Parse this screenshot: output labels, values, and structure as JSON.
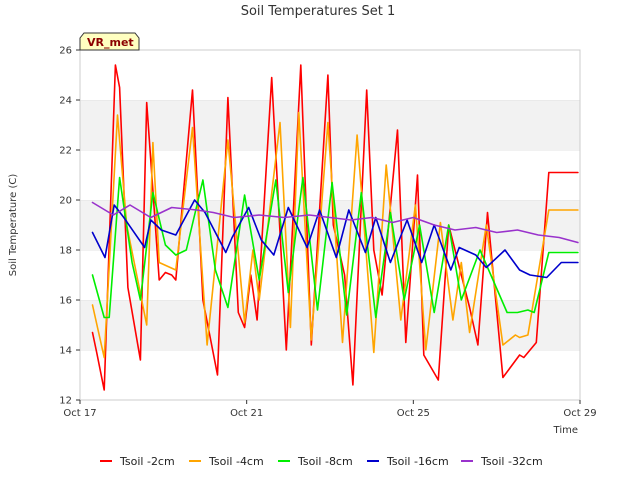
{
  "chart_data": {
    "type": "line",
    "title": "Soil Temperatures Set 1",
    "xlabel": "Time",
    "ylabel": "Soil Temperature (C)",
    "badge": "VR_met",
    "xlim": [
      0,
      12
    ],
    "ylim": [
      12,
      26
    ],
    "x_ticks": [
      {
        "value": 0,
        "label": "Oct 17"
      },
      {
        "value": 4,
        "label": "Oct 21"
      },
      {
        "value": 8,
        "label": "Oct 25"
      },
      {
        "value": 12,
        "label": "Oct 29"
      }
    ],
    "y_ticks": [
      12,
      14,
      16,
      18,
      20,
      22,
      24,
      26
    ],
    "grid": "alternating horizontal bands",
    "legend": "bottom",
    "series": [
      {
        "name": "Tsoil -2cm",
        "color": "#ff0000",
        "x": [
          0.3,
          0.4,
          0.58,
          0.85,
          0.95,
          1.15,
          1.45,
          1.6,
          1.9,
          2.05,
          2.2,
          2.3,
          2.7,
          2.95,
          3.3,
          3.55,
          3.8,
          3.95,
          4.1,
          4.25,
          4.6,
          4.95,
          5.3,
          5.55,
          5.95,
          6.08,
          6.35,
          6.55,
          6.88,
          7.05,
          7.25,
          7.62,
          7.82,
          8.1,
          8.25,
          8.6,
          8.85,
          9.15,
          9.35,
          9.55,
          9.78,
          10.15,
          10.55,
          10.65,
          10.95,
          11.25,
          11.55,
          11.8,
          11.95
        ],
        "values": [
          14.7,
          13.9,
          12.4,
          25.4,
          24.5,
          16.5,
          13.6,
          23.9,
          16.8,
          17.1,
          17.0,
          16.8,
          24.4,
          16.0,
          13.0,
          24.1,
          15.5,
          14.9,
          17.0,
          15.2,
          24.9,
          14.0,
          25.4,
          14.2,
          25.0,
          19.0,
          17.0,
          12.6,
          24.4,
          18.0,
          16.2,
          22.8,
          14.3,
          21.0,
          13.8,
          12.8,
          19.0,
          17.0,
          15.7,
          14.2,
          19.5,
          12.9,
          13.8,
          13.7,
          14.3,
          21.1,
          21.1,
          21.1,
          21.1
        ]
      },
      {
        "name": "Tsoil -4cm",
        "color": "#ffa500",
        "x": [
          0.3,
          0.58,
          0.9,
          1.12,
          1.6,
          1.75,
          1.9,
          2.3,
          2.7,
          3.05,
          3.55,
          3.95,
          4.15,
          4.3,
          4.8,
          5.05,
          5.25,
          5.55,
          5.95,
          6.3,
          6.65,
          7.05,
          7.35,
          7.7,
          8.05,
          8.3,
          8.65,
          8.95,
          9.15,
          9.35,
          9.75,
          10.15,
          10.45,
          10.55,
          10.75,
          11.25,
          11.95
        ],
        "values": [
          15.8,
          13.7,
          23.4,
          19.0,
          15.0,
          22.3,
          17.5,
          17.2,
          22.9,
          14.2,
          22.4,
          15.1,
          18.0,
          16.0,
          23.1,
          14.9,
          23.5,
          14.4,
          23.1,
          14.3,
          22.6,
          13.9,
          21.4,
          15.2,
          19.8,
          14.0,
          19.1,
          15.2,
          17.5,
          14.7,
          19.0,
          14.2,
          14.6,
          14.5,
          14.6,
          19.6,
          19.6
        ]
      },
      {
        "name": "Tsoil -8cm",
        "color": "#00ee00",
        "x": [
          0.3,
          0.58,
          0.7,
          0.95,
          1.25,
          1.45,
          1.75,
          2.05,
          2.3,
          2.55,
          2.95,
          3.25,
          3.55,
          3.95,
          4.3,
          4.7,
          5.0,
          5.35,
          5.7,
          6.05,
          6.4,
          6.75,
          7.1,
          7.45,
          7.78,
          8.15,
          8.5,
          8.85,
          9.15,
          9.6,
          10.25,
          10.5,
          10.75,
          10.9,
          11.25,
          11.95
        ],
        "values": [
          17.0,
          15.3,
          15.3,
          20.9,
          17.5,
          16.0,
          20.3,
          18.2,
          17.8,
          18.0,
          20.8,
          17.2,
          15.7,
          20.2,
          16.8,
          20.8,
          16.3,
          20.9,
          15.6,
          20.7,
          15.4,
          20.3,
          15.3,
          19.5,
          16.0,
          19.0,
          15.5,
          19.0,
          16.0,
          18.0,
          15.5,
          15.5,
          15.6,
          15.5,
          17.9,
          17.9
        ]
      },
      {
        "name": "Tsoil -16cm",
        "color": "#0000cc",
        "x": [
          0.3,
          0.6,
          0.82,
          1.05,
          1.55,
          1.7,
          1.95,
          2.3,
          2.75,
          3.0,
          3.5,
          3.65,
          4.05,
          4.35,
          4.65,
          5.0,
          5.45,
          5.75,
          6.15,
          6.45,
          6.85,
          7.1,
          7.45,
          7.85,
          8.2,
          8.5,
          8.9,
          9.1,
          9.5,
          9.75,
          10.2,
          10.55,
          10.8,
          11.2,
          11.55,
          11.95
        ],
        "values": [
          18.7,
          17.7,
          19.8,
          19.3,
          18.1,
          19.2,
          18.8,
          18.6,
          20.0,
          19.5,
          17.9,
          18.5,
          19.7,
          18.4,
          17.8,
          19.7,
          18.1,
          19.6,
          17.7,
          19.6,
          17.9,
          19.3,
          17.5,
          19.2,
          17.5,
          19.0,
          17.2,
          18.1,
          17.8,
          17.3,
          18.0,
          17.2,
          17.0,
          16.9,
          17.5,
          17.5
        ]
      },
      {
        "name": "Tsoil -32cm",
        "color": "#9932cc",
        "x": [
          0.3,
          0.8,
          1.2,
          1.7,
          2.2,
          2.8,
          3.2,
          3.7,
          4.3,
          4.9,
          5.5,
          6.0,
          6.5,
          7.0,
          7.5,
          8.0,
          8.5,
          9.0,
          9.5,
          10.0,
          10.5,
          11.0,
          11.5,
          11.95
        ],
        "values": [
          19.9,
          19.4,
          19.8,
          19.3,
          19.7,
          19.6,
          19.5,
          19.3,
          19.4,
          19.3,
          19.4,
          19.3,
          19.2,
          19.3,
          19.1,
          19.3,
          19.0,
          18.8,
          18.9,
          18.7,
          18.8,
          18.6,
          18.5,
          18.3
        ]
      }
    ]
  }
}
